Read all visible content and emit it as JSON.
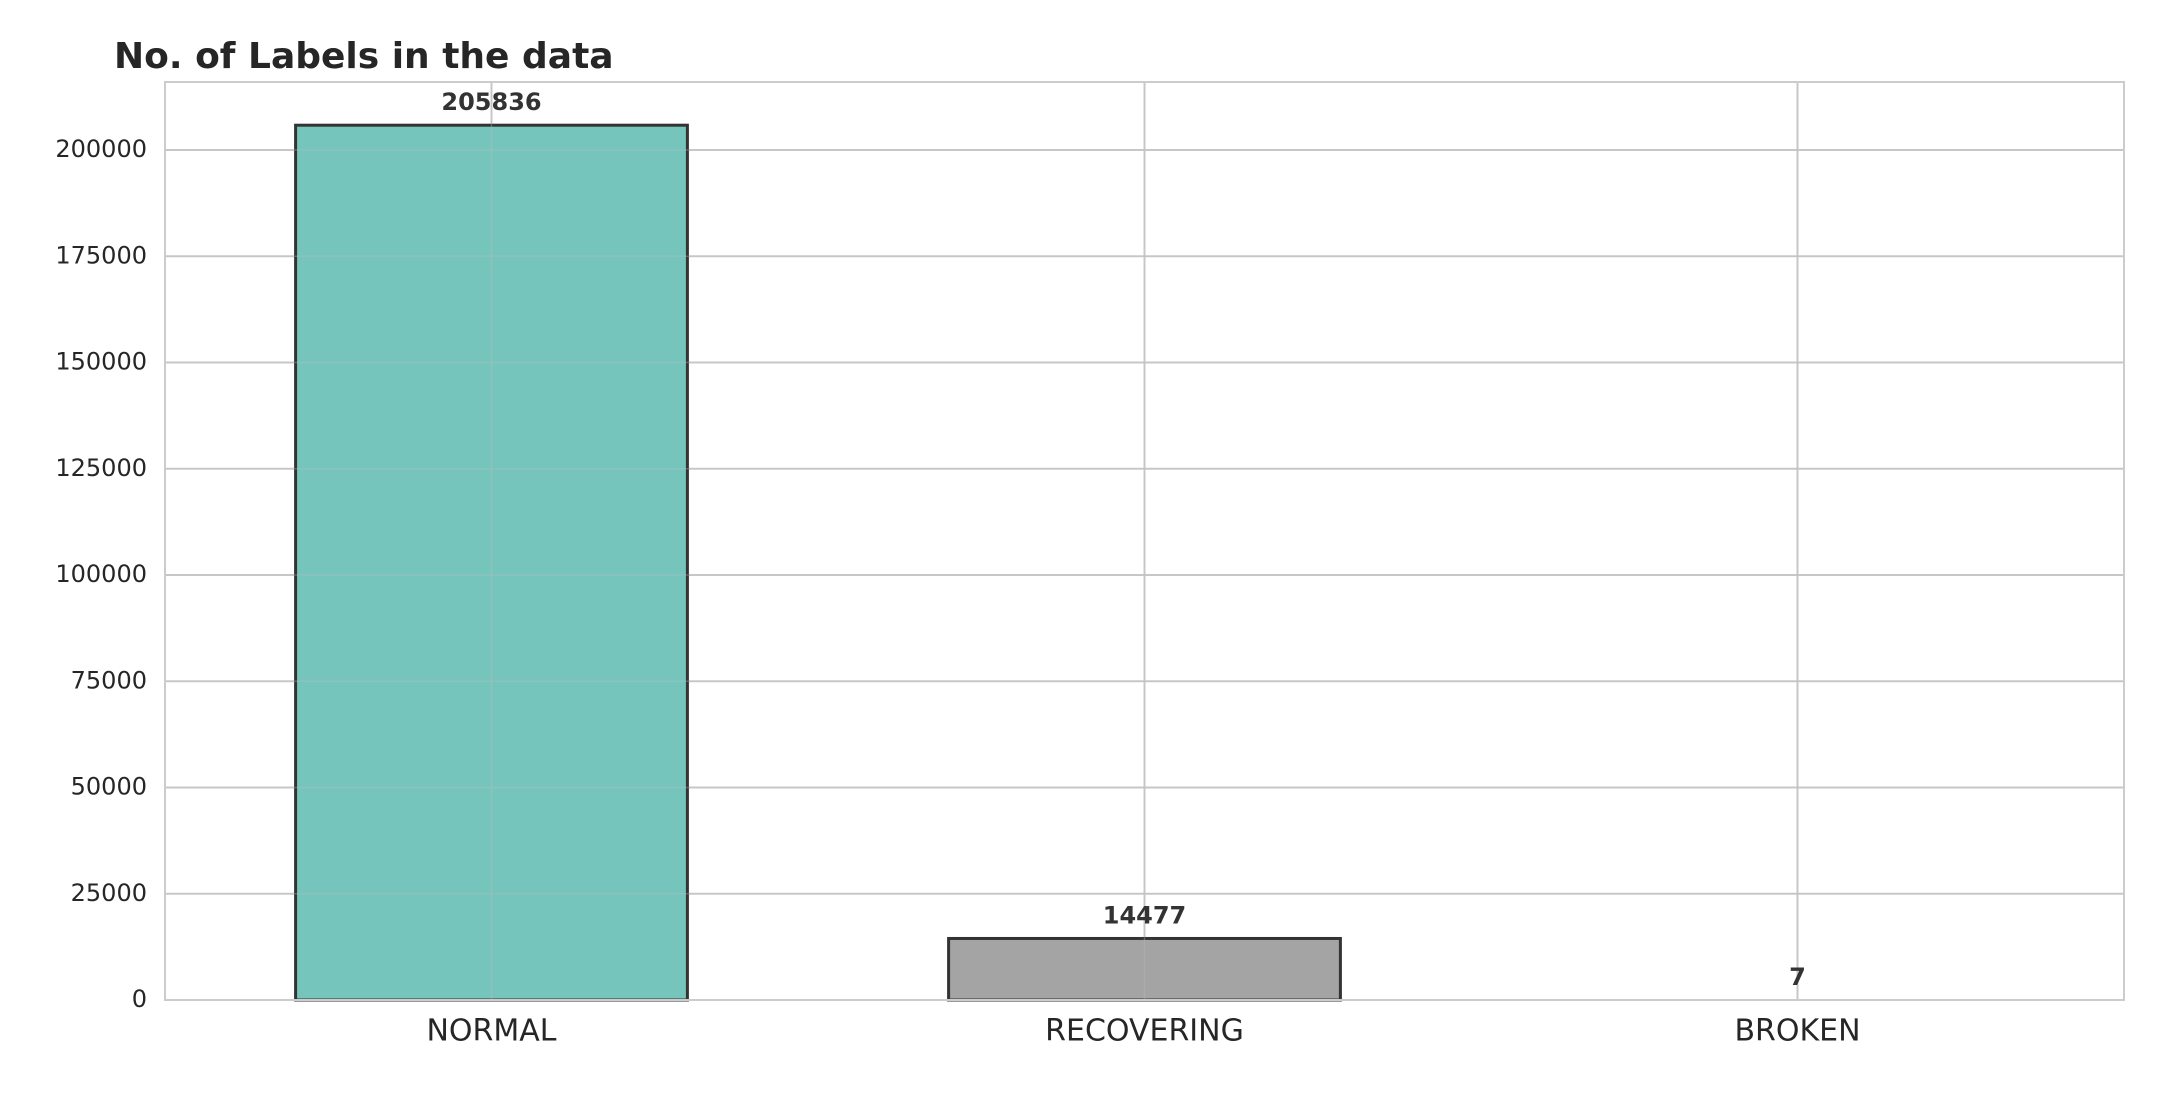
{
  "chart_data": {
    "type": "bar",
    "title": "No. of Labels in the data",
    "xlabel": "",
    "ylabel": "",
    "categories": [
      "NORMAL",
      "RECOVERING",
      "BROKEN"
    ],
    "values": [
      205836,
      14477,
      7
    ],
    "value_labels": [
      "205836",
      "14477",
      "7"
    ],
    "bar_colors": [
      "#76c5bd",
      "#a4a4a4",
      "#a4a4a4"
    ],
    "bar_edge_color": "#333333",
    "ylim": [
      0,
      216000
    ],
    "yticks": [
      0,
      25000,
      50000,
      75000,
      100000,
      125000,
      150000,
      175000,
      200000
    ],
    "ytick_labels": [
      "0",
      "25000",
      "50000",
      "75000",
      "100000",
      "125000",
      "150000",
      "175000",
      "200000"
    ],
    "grid": true,
    "legend": false
  }
}
